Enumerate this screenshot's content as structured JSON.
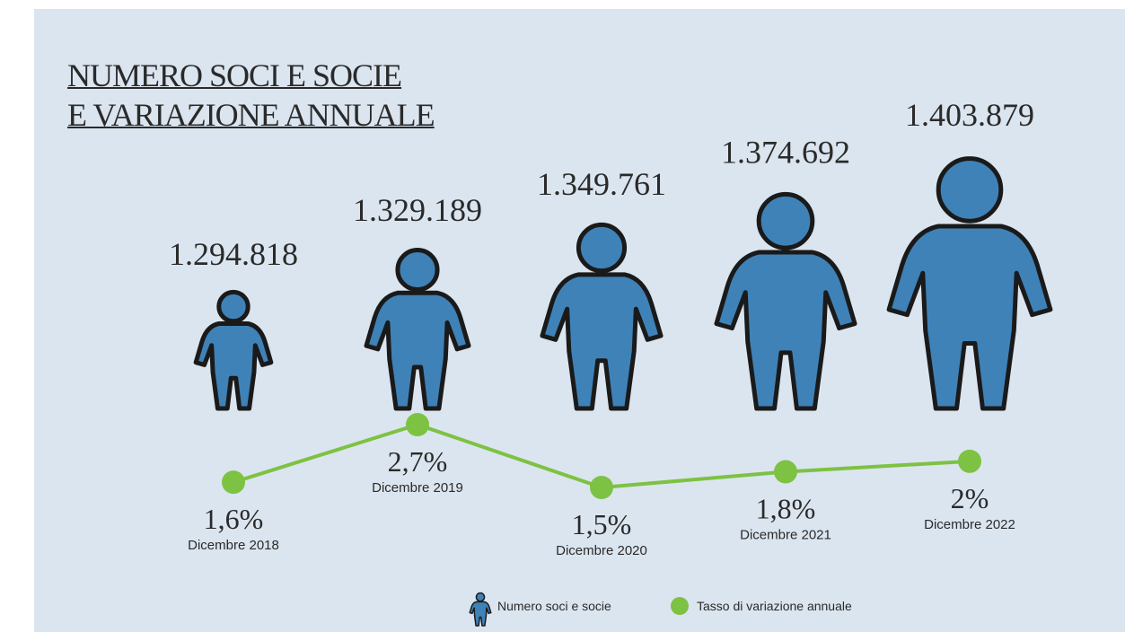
{
  "chart_data": {
    "type": "pictogram-line",
    "title": "NUMERO SOCI E SOCIE\nE VARIAZIONE ANNUALE",
    "categories": [
      "Dicembre 2018",
      "Dicembre 2019",
      "Dicembre 2020",
      "Dicembre 2021",
      "Dicembre 2022"
    ],
    "series": [
      {
        "name": "Numero soci e socie",
        "type": "pictogram",
        "color": "#3f82b8",
        "values": [
          1294818,
          1329189,
          1349761,
          1374692,
          1403879
        ],
        "value_labels": [
          "1.294.818",
          "1.329.189",
          "1.349.761",
          "1.374.692",
          "1.403.879"
        ]
      },
      {
        "name": "Tasso di variazione annuale",
        "type": "line",
        "color": "#7dc242",
        "values": [
          1.6,
          2.7,
          1.5,
          1.8,
          2
        ],
        "value_labels": [
          "1,6%",
          "2,7%",
          "1,5%",
          "1,8%",
          "2%"
        ]
      }
    ]
  }
}
